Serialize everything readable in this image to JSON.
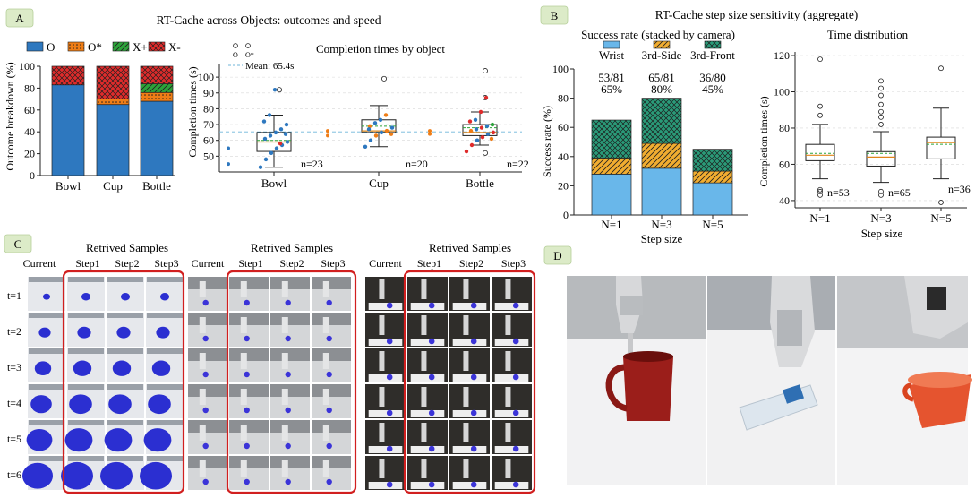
{
  "panels": {
    "a": {
      "badge": "A",
      "title": "RT-Cache across Objects: outcomes and speed"
    },
    "b": {
      "badge": "B",
      "title": "RT-Cache step size sensitivity (aggregate)"
    },
    "c": {
      "badge": "C"
    },
    "d": {
      "badge": "D"
    }
  },
  "colors": {
    "o": "#2e78bf",
    "o_star": "#ef7d16",
    "x_plus": "#2ca33a",
    "x_minus": "#df2b2b",
    "wrist": "#69b7ea",
    "side": "#f1ad30",
    "front": "#2a9a78",
    "frame": "#d11f1f"
  },
  "chart_data": [
    {
      "id": "outcome-breakdown",
      "type": "bar",
      "stacked": true,
      "ylabel": "Outcome breakdown (%)",
      "ylim": [
        0,
        100
      ],
      "yticks": [
        0,
        20,
        40,
        60,
        80,
        100
      ],
      "categories": [
        "Bowl",
        "Cup",
        "Bottle"
      ],
      "legend": [
        "O",
        "O*",
        "X+",
        "X-"
      ],
      "legend_position": "top",
      "series": [
        {
          "name": "O",
          "values": [
            83,
            65,
            68
          ]
        },
        {
          "name": "O*",
          "values": [
            0,
            5,
            8
          ]
        },
        {
          "name": "X+",
          "values": [
            0,
            0,
            8
          ]
        },
        {
          "name": "X-",
          "values": [
            17,
            30,
            16
          ]
        }
      ]
    },
    {
      "id": "completion-by-object",
      "type": "box",
      "title": "Completion times by object",
      "ylabel": "Completion times (s)",
      "ylim": [
        40,
        108
      ],
      "yticks": [
        50,
        60,
        70,
        80,
        90,
        100
      ],
      "categories": [
        "Bowl",
        "Cup",
        "Bottle"
      ],
      "n_labels": [
        "n=23",
        "n=20",
        "n=22"
      ],
      "mean_line": 65.4,
      "mean_label": "Mean: 65.4s",
      "legend": [
        "O",
        "O*"
      ],
      "boxes": [
        {
          "min": 43,
          "q1": 53,
          "median": 59,
          "mean": 60,
          "q3": 65,
          "max": 76,
          "outliers": [
            92
          ]
        },
        {
          "min": 56,
          "q1": 65,
          "median": 66,
          "mean": 69,
          "q3": 73,
          "max": 82,
          "outliers": [
            99
          ]
        },
        {
          "min": 57,
          "q1": 63,
          "median": 65,
          "mean": 68,
          "q3": 70,
          "max": 78,
          "outliers": [
            52,
            87,
            104
          ]
        }
      ],
      "points": [
        [
          {
            "y": 43,
            "c": "o"
          },
          {
            "y": 48,
            "c": "o"
          },
          {
            "y": 52,
            "c": "o"
          },
          {
            "y": 55,
            "c": "o"
          },
          {
            "y": 57,
            "c": "o"
          },
          {
            "y": 59,
            "c": "o"
          },
          {
            "y": 61,
            "c": "o"
          },
          {
            "y": 63,
            "c": "o"
          },
          {
            "y": 65,
            "c": "o"
          },
          {
            "y": 67,
            "c": "o"
          },
          {
            "y": 70,
            "c": "o"
          },
          {
            "y": 72,
            "c": "o"
          },
          {
            "y": 76,
            "c": "o"
          },
          {
            "y": 92,
            "c": "o"
          },
          {
            "y": 58,
            "c": "x"
          },
          {
            "y": 64,
            "c": "o"
          }
        ],
        [
          {
            "y": 56,
            "c": "o"
          },
          {
            "y": 60,
            "c": "o"
          },
          {
            "y": 63,
            "c": "s"
          },
          {
            "y": 65,
            "c": "o"
          },
          {
            "y": 66,
            "c": "s"
          },
          {
            "y": 68,
            "c": "o"
          },
          {
            "y": 69,
            "c": "s"
          },
          {
            "y": 71,
            "c": "o"
          },
          {
            "y": 73,
            "c": "o"
          },
          {
            "y": 76,
            "c": "s"
          },
          {
            "y": 64,
            "c": "s"
          },
          {
            "y": 67,
            "c": "o"
          }
        ],
        [
          {
            "y": 53,
            "c": "x"
          },
          {
            "y": 57,
            "c": "x"
          },
          {
            "y": 60,
            "c": "o"
          },
          {
            "y": 62,
            "c": "x"
          },
          {
            "y": 64,
            "c": "o"
          },
          {
            "y": 65,
            "c": "x"
          },
          {
            "y": 66,
            "c": "s"
          },
          {
            "y": 67,
            "c": "o"
          },
          {
            "y": 68,
            "c": "x"
          },
          {
            "y": 69,
            "c": "o"
          },
          {
            "y": 70,
            "c": "g"
          },
          {
            "y": 72,
            "c": "x"
          },
          {
            "y": 73,
            "c": "o"
          },
          {
            "y": 78,
            "c": "x"
          },
          {
            "y": 87,
            "c": "x"
          },
          {
            "y": 61,
            "c": "s"
          }
        ]
      ]
    },
    {
      "id": "step-size-success",
      "type": "bar",
      "stacked": true,
      "title": "Success rate (stacked by camera)",
      "xlabel": "Step size",
      "ylabel": "Success rate (%)",
      "ylim": [
        0,
        100
      ],
      "yticks": [
        0,
        20,
        40,
        60,
        80,
        100
      ],
      "categories": [
        "N=1",
        "N=3",
        "N=5"
      ],
      "legend": [
        "Wrist",
        "3rd-Side",
        "3rd-Front"
      ],
      "legend_position": "top",
      "series": [
        {
          "name": "Wrist",
          "values": [
            28,
            32,
            22
          ]
        },
        {
          "name": "3rd-Side",
          "values": [
            11,
            17,
            8
          ]
        },
        {
          "name": "3rd-Front",
          "values": [
            26,
            31,
            15
          ]
        }
      ],
      "annotations": [
        [
          "53/81",
          "65%"
        ],
        [
          "65/81",
          "80%"
        ],
        [
          "36/80",
          "45%"
        ]
      ]
    },
    {
      "id": "time-distribution",
      "type": "box",
      "title": "Time distribution",
      "xlabel": "Step size",
      "ylabel": "Completion times (s)",
      "ylim": [
        36,
        122
      ],
      "yticks": [
        40,
        60,
        80,
        100,
        120
      ],
      "categories": [
        "N=1",
        "N=3",
        "N=5"
      ],
      "n_labels": [
        "n=53",
        "n=65",
        "n=36"
      ],
      "boxes": [
        {
          "min": 52,
          "q1": 62,
          "median": 65,
          "mean": 66,
          "q3": 71,
          "max": 82,
          "outliers": [
            43,
            45,
            46,
            87,
            92,
            118
          ]
        },
        {
          "min": 50,
          "q1": 59,
          "median": 64,
          "mean": 66,
          "q3": 67,
          "max": 78,
          "outliers": [
            43,
            45,
            82,
            86,
            89,
            93,
            98,
            102,
            106
          ]
        },
        {
          "min": 52,
          "q1": 63,
          "median": 72,
          "mean": 71,
          "q3": 75,
          "max": 91,
          "outliers": [
            39,
            113
          ]
        }
      ]
    }
  ],
  "panel_c": {
    "header_retrieved": "Retrived Samples",
    "header_current": "Current",
    "header_steps": [
      "Step1",
      "Step2",
      "Step3"
    ],
    "row_labels": [
      "t=1",
      "t=2",
      "t=3",
      "t=4",
      "t=5",
      "t=6"
    ]
  }
}
